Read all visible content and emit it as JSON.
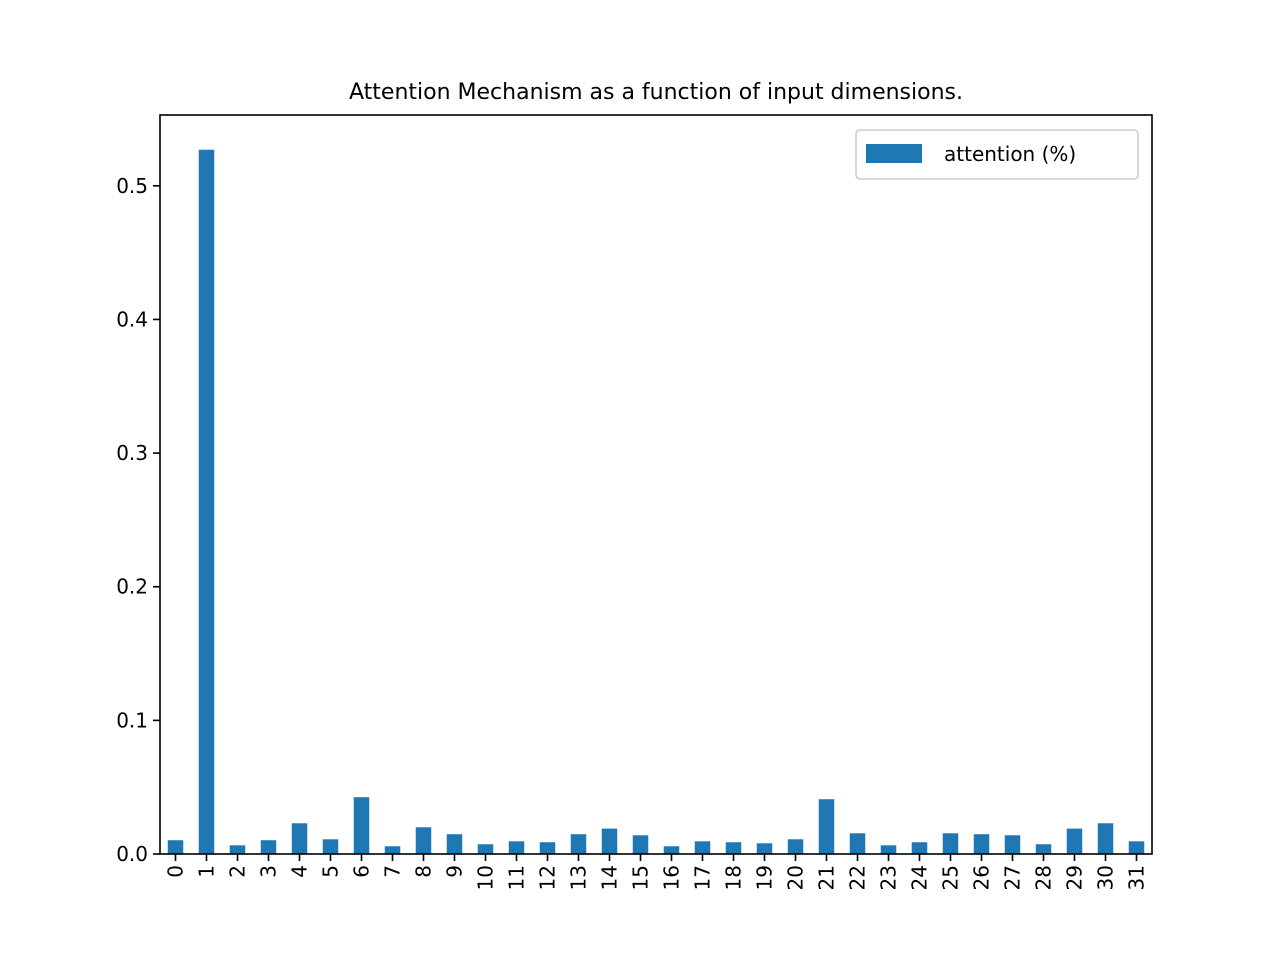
{
  "chart_data": {
    "type": "bar",
    "title": "Attention Mechanism as a function of input dimensions.",
    "xlabel": "",
    "ylabel": "",
    "categories": [
      "0",
      "1",
      "2",
      "3",
      "4",
      "5",
      "6",
      "7",
      "8",
      "9",
      "10",
      "11",
      "12",
      "13",
      "14",
      "15",
      "16",
      "17",
      "18",
      "19",
      "20",
      "21",
      "22",
      "23",
      "24",
      "25",
      "26",
      "27",
      "28",
      "29",
      "30",
      "31"
    ],
    "series": [
      {
        "name": "attention (%)",
        "color": "#1f77b4",
        "values": [
          0.0103,
          0.527,
          0.0065,
          0.0103,
          0.023,
          0.011,
          0.0425,
          0.0058,
          0.02,
          0.0148,
          0.0073,
          0.0095,
          0.0088,
          0.0148,
          0.019,
          0.014,
          0.0058,
          0.0095,
          0.0088,
          0.008,
          0.011,
          0.041,
          0.0155,
          0.0065,
          0.0088,
          0.0155,
          0.0148,
          0.014,
          0.0073,
          0.019,
          0.023,
          0.0095
        ]
      }
    ],
    "ylim": [
      0,
      0.553
    ],
    "yticks": [
      "0.0",
      "0.1",
      "0.2",
      "0.3",
      "0.4",
      "0.5"
    ],
    "grid": false,
    "legend": {
      "position": "top-right",
      "entries": [
        "attention (%)"
      ]
    }
  }
}
